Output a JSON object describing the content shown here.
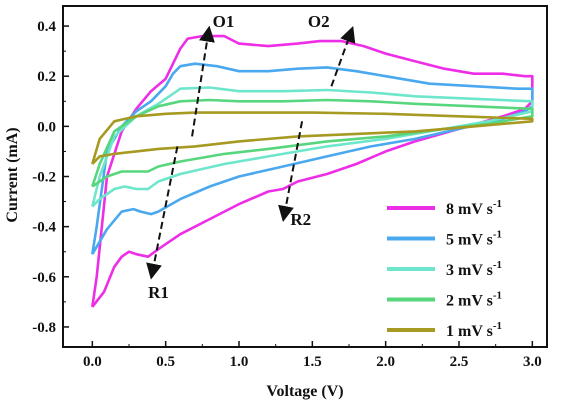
{
  "chart_data": {
    "type": "line",
    "title": "",
    "xlabel": "Voltage (V)",
    "ylabel": "Current (mA)",
    "xlim": [
      -0.2,
      3.1
    ],
    "ylim": [
      -0.88,
      0.48
    ],
    "x_ticks": [
      "0.0",
      "0.5",
      "1.0",
      "1.5",
      "2.0",
      "2.5",
      "3.0"
    ],
    "y_ticks": [
      "0.4",
      "0.2",
      "0.0",
      "-0.2",
      "-0.4",
      "-0.6",
      "-0.8"
    ],
    "grid": false,
    "legend_position": "bottom-right",
    "series": [
      {
        "name": "8 mV s",
        "name_sup": "-1",
        "color": "#ee2ee6",
        "points": [
          [
            0.0,
            -0.72
          ],
          [
            0.03,
            -0.6
          ],
          [
            0.1,
            -0.2
          ],
          [
            0.2,
            -0.02
          ],
          [
            0.3,
            0.07
          ],
          [
            0.4,
            0.14
          ],
          [
            0.5,
            0.19
          ],
          [
            0.55,
            0.25
          ],
          [
            0.6,
            0.31
          ],
          [
            0.65,
            0.35
          ],
          [
            0.75,
            0.36
          ],
          [
            0.9,
            0.36
          ],
          [
            1.0,
            0.33
          ],
          [
            1.2,
            0.32
          ],
          [
            1.4,
            0.33
          ],
          [
            1.55,
            0.34
          ],
          [
            1.7,
            0.34
          ],
          [
            1.85,
            0.32
          ],
          [
            2.0,
            0.29
          ],
          [
            2.2,
            0.26
          ],
          [
            2.4,
            0.23
          ],
          [
            2.6,
            0.21
          ],
          [
            2.8,
            0.21
          ],
          [
            2.95,
            0.2
          ],
          [
            3.0,
            0.2
          ],
          [
            3.0,
            0.1
          ],
          [
            2.95,
            0.07
          ],
          [
            2.8,
            0.04
          ],
          [
            2.5,
            -0.01
          ],
          [
            2.2,
            -0.06
          ],
          [
            2.0,
            -0.1
          ],
          [
            1.8,
            -0.15
          ],
          [
            1.6,
            -0.19
          ],
          [
            1.4,
            -0.22
          ],
          [
            1.3,
            -0.25
          ],
          [
            1.2,
            -0.26
          ],
          [
            1.0,
            -0.31
          ],
          [
            0.8,
            -0.37
          ],
          [
            0.6,
            -0.43
          ],
          [
            0.45,
            -0.49
          ],
          [
            0.38,
            -0.52
          ],
          [
            0.3,
            -0.51
          ],
          [
            0.25,
            -0.5
          ],
          [
            0.2,
            -0.52
          ],
          [
            0.15,
            -0.56
          ],
          [
            0.08,
            -0.66
          ],
          [
            0.0,
            -0.72
          ]
        ]
      },
      {
        "name": "5 mV s",
        "name_sup": "-1",
        "color": "#4aa8ef",
        "points": [
          [
            0.0,
            -0.51
          ],
          [
            0.03,
            -0.4
          ],
          [
            0.1,
            -0.1
          ],
          [
            0.2,
            0.0
          ],
          [
            0.3,
            0.06
          ],
          [
            0.4,
            0.1
          ],
          [
            0.5,
            0.16
          ],
          [
            0.55,
            0.21
          ],
          [
            0.6,
            0.24
          ],
          [
            0.7,
            0.25
          ],
          [
            0.85,
            0.24
          ],
          [
            1.0,
            0.22
          ],
          [
            1.2,
            0.22
          ],
          [
            1.4,
            0.23
          ],
          [
            1.6,
            0.235
          ],
          [
            1.8,
            0.22
          ],
          [
            2.0,
            0.2
          ],
          [
            2.3,
            0.17
          ],
          [
            2.6,
            0.16
          ],
          [
            2.9,
            0.15
          ],
          [
            3.0,
            0.15
          ],
          [
            3.0,
            0.08
          ],
          [
            2.95,
            0.06
          ],
          [
            2.8,
            0.03
          ],
          [
            2.5,
            -0.01
          ],
          [
            2.2,
            -0.05
          ],
          [
            1.9,
            -0.08
          ],
          [
            1.6,
            -0.12
          ],
          [
            1.3,
            -0.16
          ],
          [
            1.0,
            -0.2
          ],
          [
            0.8,
            -0.24
          ],
          [
            0.6,
            -0.29
          ],
          [
            0.45,
            -0.34
          ],
          [
            0.4,
            -0.35
          ],
          [
            0.33,
            -0.34
          ],
          [
            0.28,
            -0.33
          ],
          [
            0.2,
            -0.34
          ],
          [
            0.1,
            -0.41
          ],
          [
            0.0,
            -0.51
          ]
        ]
      },
      {
        "name": "3 mV s",
        "name_sup": "-1",
        "color": "#6ee6cc",
        "points": [
          [
            0.0,
            -0.32
          ],
          [
            0.05,
            -0.2
          ],
          [
            0.15,
            -0.04
          ],
          [
            0.3,
            0.04
          ],
          [
            0.45,
            0.09
          ],
          [
            0.55,
            0.13
          ],
          [
            0.6,
            0.15
          ],
          [
            0.8,
            0.155
          ],
          [
            1.0,
            0.14
          ],
          [
            1.3,
            0.14
          ],
          [
            1.6,
            0.145
          ],
          [
            1.9,
            0.135
          ],
          [
            2.2,
            0.12
          ],
          [
            2.6,
            0.11
          ],
          [
            3.0,
            0.1
          ],
          [
            3.0,
            0.06
          ],
          [
            2.7,
            0.02
          ],
          [
            2.4,
            -0.01
          ],
          [
            2.0,
            -0.05
          ],
          [
            1.6,
            -0.08
          ],
          [
            1.2,
            -0.12
          ],
          [
            0.9,
            -0.15
          ],
          [
            0.6,
            -0.19
          ],
          [
            0.45,
            -0.22
          ],
          [
            0.38,
            -0.25
          ],
          [
            0.3,
            -0.25
          ],
          [
            0.22,
            -0.24
          ],
          [
            0.15,
            -0.25
          ],
          [
            0.05,
            -0.29
          ],
          [
            0.0,
            -0.32
          ]
        ]
      },
      {
        "name": "2 mV s",
        "name_sup": "-1",
        "color": "#58d67e",
        "points": [
          [
            0.0,
            -0.24
          ],
          [
            0.05,
            -0.15
          ],
          [
            0.15,
            -0.02
          ],
          [
            0.3,
            0.04
          ],
          [
            0.45,
            0.08
          ],
          [
            0.6,
            0.1
          ],
          [
            0.8,
            0.105
          ],
          [
            1.0,
            0.1
          ],
          [
            1.3,
            0.1
          ],
          [
            1.6,
            0.105
          ],
          [
            1.9,
            0.1
          ],
          [
            2.2,
            0.09
          ],
          [
            2.6,
            0.08
          ],
          [
            3.0,
            0.07
          ],
          [
            3.0,
            0.04
          ],
          [
            2.7,
            0.01
          ],
          [
            2.4,
            -0.01
          ],
          [
            2.0,
            -0.04
          ],
          [
            1.6,
            -0.06
          ],
          [
            1.2,
            -0.09
          ],
          [
            0.9,
            -0.11
          ],
          [
            0.6,
            -0.14
          ],
          [
            0.45,
            -0.16
          ],
          [
            0.38,
            -0.18
          ],
          [
            0.3,
            -0.18
          ],
          [
            0.2,
            -0.18
          ],
          [
            0.1,
            -0.2
          ],
          [
            0.0,
            -0.24
          ]
        ]
      },
      {
        "name": "1 mV s",
        "name_sup": "-1",
        "color": "#a69a22",
        "points": [
          [
            0.0,
            -0.15
          ],
          [
            0.05,
            -0.05
          ],
          [
            0.15,
            0.02
          ],
          [
            0.3,
            0.04
          ],
          [
            0.5,
            0.05
          ],
          [
            0.7,
            0.055
          ],
          [
            1.0,
            0.055
          ],
          [
            1.5,
            0.055
          ],
          [
            2.0,
            0.05
          ],
          [
            2.5,
            0.04
          ],
          [
            3.0,
            0.03
          ],
          [
            3.0,
            0.02
          ],
          [
            2.6,
            0.0
          ],
          [
            2.2,
            -0.02
          ],
          [
            1.8,
            -0.03
          ],
          [
            1.4,
            -0.04
          ],
          [
            1.0,
            -0.06
          ],
          [
            0.7,
            -0.08
          ],
          [
            0.45,
            -0.09
          ],
          [
            0.3,
            -0.1
          ],
          [
            0.15,
            -0.11
          ],
          [
            0.05,
            -0.12
          ],
          [
            0.0,
            -0.15
          ]
        ]
      }
    ],
    "annotations": [
      {
        "label": "O1",
        "arrow_from": [
          0.68,
          -0.04
        ],
        "arrow_to": [
          0.79,
          0.37
        ],
        "label_at": [
          0.82,
          0.42
        ]
      },
      {
        "label": "O2",
        "arrow_from": [
          1.63,
          0.16
        ],
        "arrow_to": [
          1.76,
          0.37
        ],
        "label_at": [
          1.47,
          0.42
        ]
      },
      {
        "label": "R1",
        "arrow_from": [
          0.58,
          -0.08
        ],
        "arrow_to": [
          0.41,
          -0.58
        ],
        "label_at": [
          0.38,
          -0.66
        ]
      },
      {
        "label": "R2",
        "arrow_from": [
          1.43,
          0.02
        ],
        "arrow_to": [
          1.31,
          -0.35
        ],
        "label_at": [
          1.35,
          -0.37
        ]
      }
    ]
  }
}
